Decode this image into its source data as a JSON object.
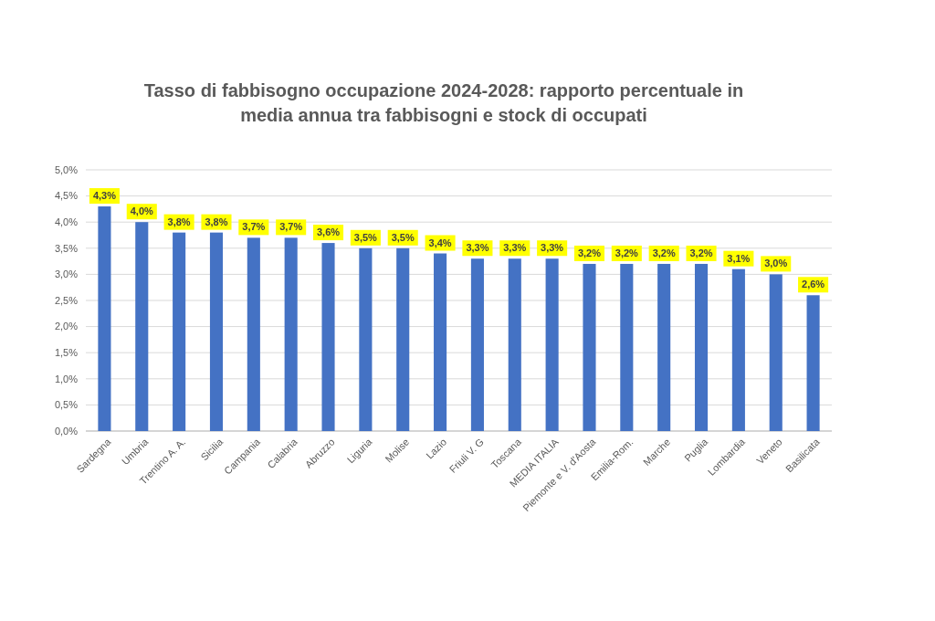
{
  "chart_data": {
    "type": "bar",
    "title": "Tasso di fabbisogno occupazione 2024-2028: rapporto percentuale in media annua tra fabbisogni e stock di occupati",
    "categories": [
      "Sardegna",
      "Umbria",
      "Trentino A. A.",
      "Sicilia",
      "Campania",
      "Calabria",
      "Abruzzo",
      "Liguria",
      "Molise",
      "Lazio",
      "Friuli V. G",
      "Toscana",
      "MEDIA ITALIA",
      "Piemonte e V. d'Aosta",
      "Emilia-Rom.",
      "Marche",
      "Puglia",
      "Lombardia",
      "Veneto",
      "Basilicata"
    ],
    "values": [
      4.3,
      4.0,
      3.8,
      3.8,
      3.7,
      3.7,
      3.6,
      3.5,
      3.5,
      3.4,
      3.3,
      3.3,
      3.3,
      3.2,
      3.2,
      3.2,
      3.2,
      3.1,
      3.0,
      2.6
    ],
    "color": "#4472c4",
    "value_labels": [
      "4,3%",
      "4,0%",
      "3,8%",
      "3,8%",
      "3,7%",
      "3,7%",
      "3,6%",
      "3,5%",
      "3,5%",
      "3,4%",
      "3,3%",
      "3,3%",
      "3,3%",
      "3,2%",
      "3,2%",
      "3,2%",
      "3,2%",
      "3,1%",
      "3,0%",
      "2,6%"
    ],
    "ylim": [
      0,
      5
    ],
    "yticks": [
      {
        "value": 0,
        "label": "0,0%"
      },
      {
        "value": 0.5,
        "label": "0,5%"
      },
      {
        "value": 1,
        "label": "1,0%"
      },
      {
        "value": 1.5,
        "label": "1,5%"
      },
      {
        "value": 2,
        "label": "2,0%"
      },
      {
        "value": 2.5,
        "label": "2,5%"
      },
      {
        "value": 3,
        "label": "3,0%"
      },
      {
        "value": 3.5,
        "label": "3,5%"
      },
      {
        "value": 4,
        "label": "4,0%"
      },
      {
        "value": 4.5,
        "label": "4,5%"
      },
      {
        "value": 5,
        "label": "5,0%"
      }
    ],
    "grid": "y"
  }
}
